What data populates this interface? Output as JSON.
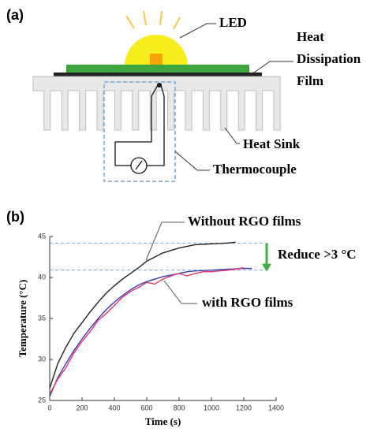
{
  "diagram": {
    "panel": "(a)",
    "led": "LED",
    "film": [
      "Heat",
      "Dissipation",
      "Film"
    ],
    "sink": "Heat Sink",
    "thermocouple": "Thermocouple"
  },
  "chart_data": {
    "type": "line",
    "panel": "(b)",
    "xlabel": "Time (s)",
    "ylabel": "Temperature (°C)",
    "xlim": [
      0,
      1400
    ],
    "xticks": [
      0,
      200,
      400,
      600,
      800,
      1000,
      1200,
      1400
    ],
    "ylim": [
      25,
      45
    ],
    "yticks": [
      25,
      30,
      35,
      40,
      45
    ],
    "reference_lines": [
      44.2,
      40.9
    ],
    "reference_color": "#6fa8dc",
    "arrow_color": "#3cb043",
    "annotations": [
      "Without RGO films",
      "with RGO films",
      "Reduce >3 °C"
    ],
    "series": [
      {
        "color": "#222222",
        "x": [
          0,
          50,
          100,
          150,
          200,
          250,
          300,
          350,
          400,
          450,
          500,
          550,
          600,
          650,
          700,
          750,
          800,
          850,
          900,
          950,
          1000,
          1050,
          1100,
          1150
        ],
        "values": [
          26.5,
          29.5,
          31.5,
          33.2,
          34.5,
          35.8,
          37,
          38.1,
          39,
          39.8,
          40.5,
          41.2,
          42,
          42.5,
          43,
          43.3,
          43.6,
          43.8,
          44,
          44.05,
          44.1,
          44.15,
          44.2,
          44.3
        ]
      },
      {
        "color": "#3b3bb3",
        "x": [
          0,
          50,
          100,
          150,
          200,
          250,
          300,
          350,
          400,
          450,
          500,
          550,
          600,
          650,
          700,
          750,
          800,
          850,
          900,
          950,
          1000,
          1050,
          1100,
          1150,
          1200,
          1250
        ],
        "values": [
          25.5,
          27.8,
          29.5,
          31.1,
          32.5,
          33.8,
          35,
          36.1,
          37,
          37.8,
          38.5,
          39.1,
          39.5,
          39.8,
          40.1,
          40.3,
          40.5,
          40.7,
          40.8,
          40.85,
          40.9,
          40.95,
          41,
          41.05,
          41.1,
          41.1
        ]
      },
      {
        "color": "#e8336b",
        "x": [
          0,
          50,
          100,
          150,
          200,
          250,
          300,
          350,
          400,
          450,
          500,
          550,
          600,
          650,
          700,
          750,
          800,
          850,
          900,
          950,
          1000,
          1050,
          1100,
          1150,
          1200
        ],
        "values": [
          25.8,
          27.6,
          29,
          30.8,
          32.2,
          33.4,
          34.8,
          35.6,
          36.6,
          37.6,
          38.3,
          38.8,
          39.4,
          39.2,
          39.8,
          40.2,
          40.5,
          40.2,
          40.5,
          40.7,
          40.7,
          40.8,
          40.9,
          41,
          41.2
        ]
      }
    ]
  }
}
